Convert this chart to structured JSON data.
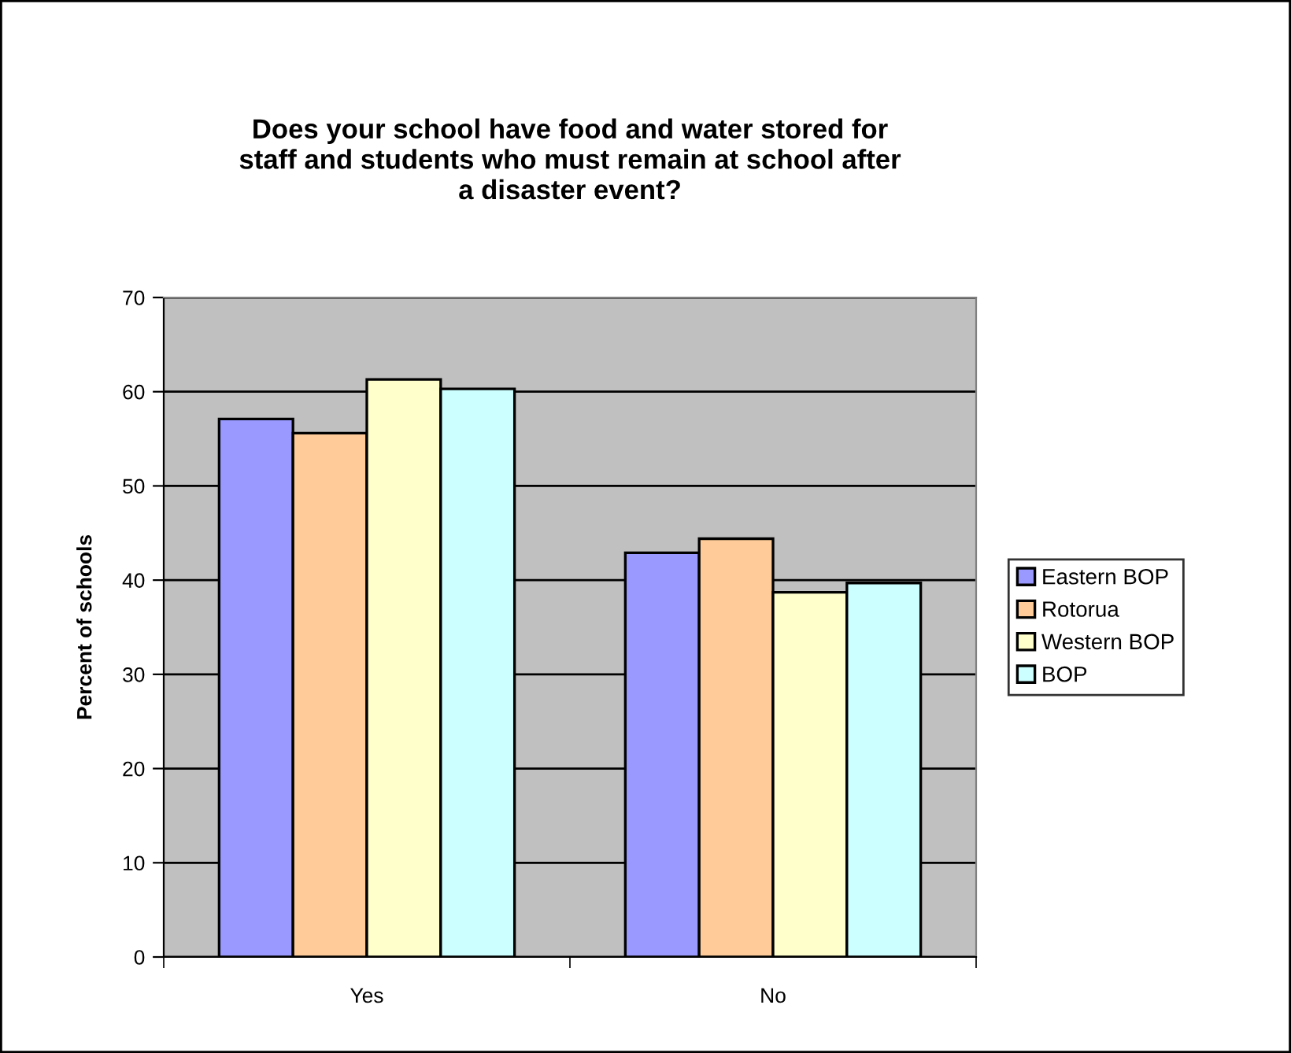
{
  "chart_data": {
    "type": "bar",
    "title": "Does your school have food and water stored for\nstaff and students who must remain at school after\na disaster event?",
    "ylabel": "Percent of schools",
    "categories": [
      "Yes",
      "No"
    ],
    "series": [
      {
        "name": "Eastern BOP",
        "color": "#9999ff",
        "values": [
          57.1,
          42.9
        ]
      },
      {
        "name": "Rotorua",
        "color": "#ffcc99",
        "values": [
          55.6,
          44.4
        ]
      },
      {
        "name": "Western BOP",
        "color": "#ffffcc",
        "values": [
          61.3,
          38.7
        ]
      },
      {
        "name": "BOP",
        "color": "#ccffff",
        "values": [
          60.3,
          39.7
        ]
      }
    ],
    "ylim": [
      0,
      70
    ],
    "yticks": [
      0,
      10,
      20,
      30,
      40,
      50,
      60,
      70
    ],
    "grid": "y",
    "legend": "right"
  }
}
